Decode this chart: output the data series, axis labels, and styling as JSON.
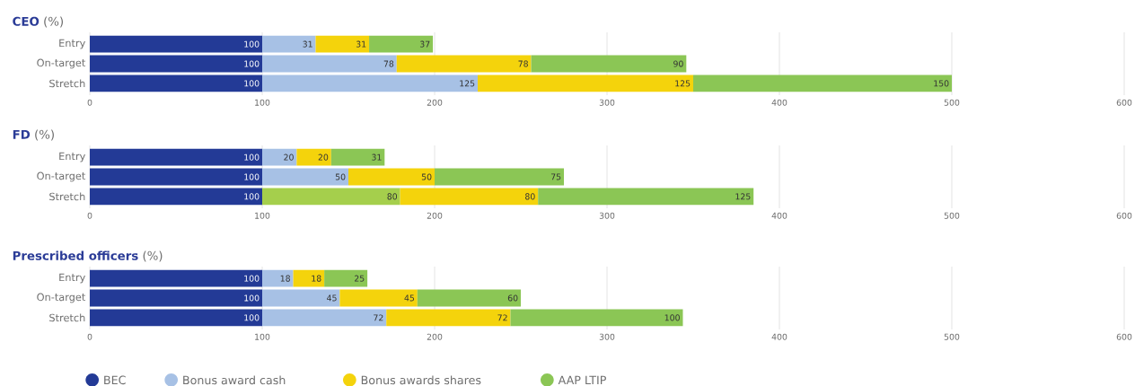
{
  "chart_data": [
    {
      "type": "bar",
      "title": "**CEO** (%)",
      "orientation": "horizontal",
      "stacked": true,
      "categories": [
        "Entry",
        "On-target",
        "Stretch"
      ],
      "xlim": [
        0,
        600
      ],
      "xticks": [
        0,
        100,
        200,
        300,
        400,
        500,
        600
      ],
      "grid": "x",
      "data_labels": true,
      "legend": false,
      "series": [
        {
          "color": "#233a96",
          "values": [
            100,
            100,
            100
          ]
        },
        {
          "color": "#a7c1e5",
          "values": [
            31,
            78,
            125
          ]
        },
        {
          "color": "#f4d30c",
          "values": [
            31,
            78,
            125
          ]
        },
        {
          "color": "#8bc655",
          "values": [
            37,
            90,
            150
          ]
        }
      ]
    },
    {
      "type": "bar",
      "title": "**FD** (%)",
      "orientation": "horizontal",
      "stacked": true,
      "categories": [
        "Entry",
        "On-target",
        "Stretch"
      ],
      "xlim": [
        0,
        600
      ],
      "xticks": [
        0,
        100,
        200,
        300,
        400,
        500,
        600
      ],
      "grid": "x",
      "data_labels": true,
      "legend": false,
      "series": [
        {
          "color": "#233a96",
          "values": [
            100,
            100,
            100
          ]
        },
        {
          "color": "#a7c1e5",
          "colors": [
            "#a7c1e5",
            "#a7c1e5",
            "#a5cf4c"
          ],
          "values": [
            20,
            50,
            80
          ]
        },
        {
          "color": "#f4d30c",
          "values": [
            20,
            50,
            80
          ]
        },
        {
          "color": "#8bc655",
          "values": [
            31,
            75,
            125
          ]
        }
      ]
    },
    {
      "type": "bar",
      "title": "**Prescribed officers** (%)",
      "orientation": "horizontal",
      "stacked": true,
      "categories": [
        "Entry",
        "On-target",
        "Stretch"
      ],
      "xlim": [
        0,
        600
      ],
      "xticks": [
        0,
        100,
        200,
        300,
        400,
        500,
        600
      ],
      "grid": "x",
      "data_labels": true,
      "legend": "bottom",
      "series": [
        {
          "name": "BEC",
          "color": "#233a96",
          "values": [
            100,
            100,
            100
          ]
        },
        {
          "name": "Bonus award cash",
          "color": "#a7c1e5",
          "values": [
            18,
            45,
            72
          ]
        },
        {
          "name": "Bonus awards shares",
          "color": "#f4d30c",
          "values": [
            18,
            45,
            72
          ]
        },
        {
          "name": "AAP LTIP",
          "color": "#8bc655",
          "values": [
            25,
            60,
            100
          ]
        }
      ]
    }
  ]
}
